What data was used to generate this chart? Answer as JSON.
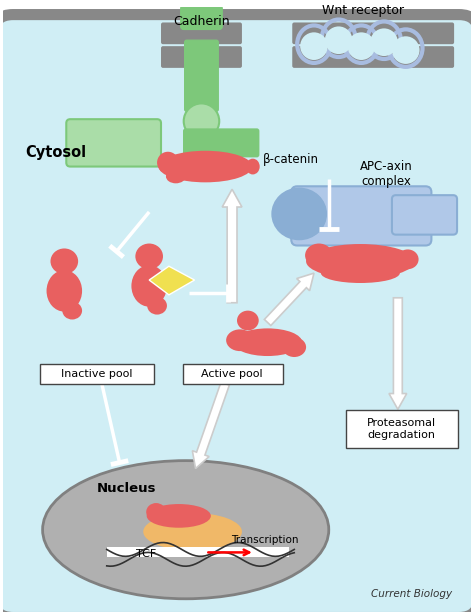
{
  "bg_color": "#d0eef5",
  "cell_border_color": "#888888",
  "cytosol_label": "Cytosol",
  "nucleus_label": "Nucleus",
  "cadherin_label": "Cadherin",
  "wnt_label": "Wnt receptor",
  "beta_catenin_label": "β-catenin",
  "apc_label": "APC-axin\ncomplex",
  "inactive_label": "Inactive pool",
  "active_label": "Active pool",
  "proteasomal_label": "Proteasomal\ndegradation",
  "transcription_label": "Transcription",
  "tcf_label": "TCF",
  "current_biology_label": "Current Biology",
  "green_color": "#7dc87a",
  "light_green": "#aadda8",
  "red_color": "#e86060",
  "blue_color": "#8aaed4",
  "light_blue": "#b0c8e8",
  "yellow_color": "#f0e050",
  "orange_color": "#f0b868",
  "gray_color": "#909090",
  "nucleus_color": "#aaaaaa",
  "membrane_color": "#888888",
  "arrow_color": "#f0f0f0",
  "white": "#ffffff"
}
